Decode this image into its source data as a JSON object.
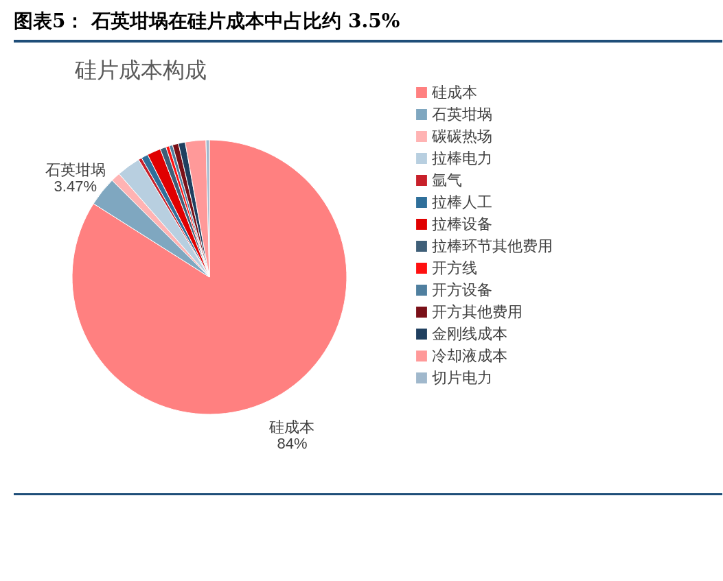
{
  "chart_data": {
    "type": "pie",
    "title": "图表5：  石英坩埚在硅片成本中占比约 3.5%",
    "subtitle": "硅片成本构成",
    "categories": [
      "硅成本",
      "石英坩埚",
      "碳碳热场",
      "拉棒电力",
      "氩气",
      "拉棒人工",
      "拉棒设备",
      "拉棒环节其他费用",
      "开方线",
      "开方设备",
      "开方其他费用",
      "金刚线成本",
      "冷却液成本",
      "切片电力"
    ],
    "values": [
      84,
      3.47,
      1.1,
      2.8,
      0.4,
      0.8,
      1.6,
      0.7,
      0.4,
      0.4,
      0.7,
      0.8,
      2.43,
      0.4
    ],
    "colors": [
      "#ff8080",
      "#7fa7c0",
      "#ffb3b3",
      "#b8cfe0",
      "#c8202a",
      "#2f6f9a",
      "#e00000",
      "#3f5f78",
      "#ff1010",
      "#4f7f9f",
      "#7a1018",
      "#1f3f5f",
      "#ff9999",
      "#a0b8cc"
    ],
    "value_labels": [
      "84%",
      "3.47%",
      null,
      null,
      null,
      null,
      null,
      null,
      null,
      null,
      null,
      null,
      null,
      null
    ],
    "legend": "right"
  }
}
